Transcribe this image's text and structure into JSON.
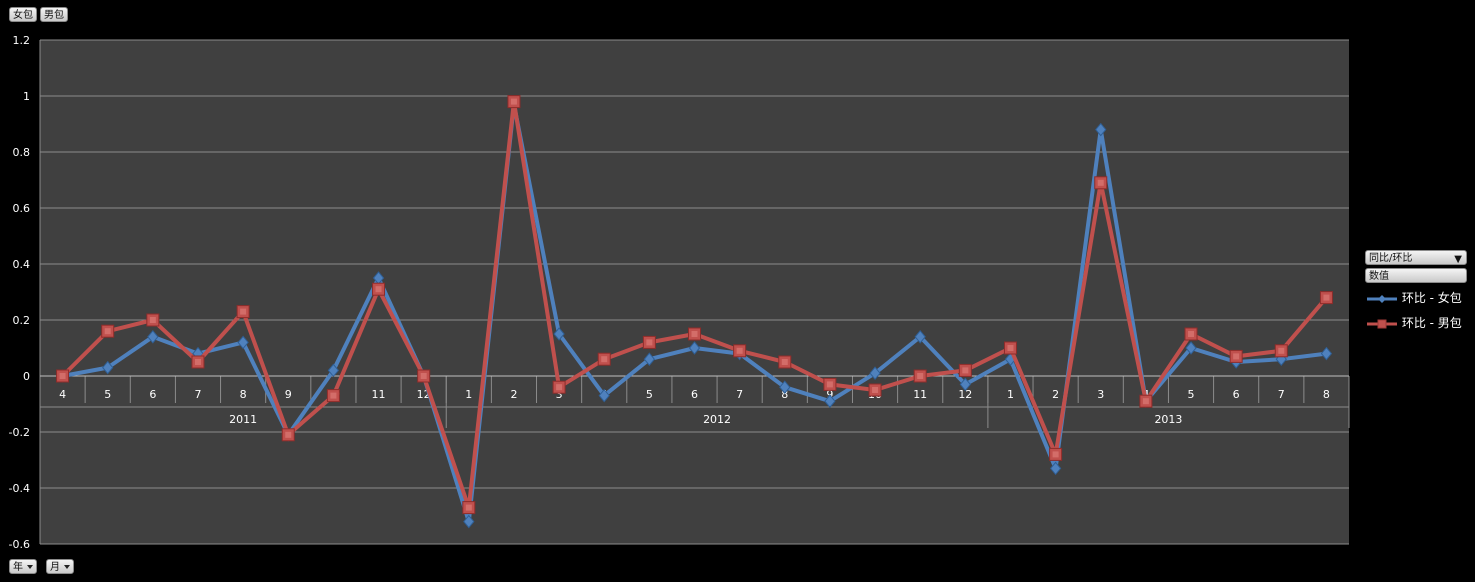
{
  "filter_buttons": {
    "series_a": "女包",
    "series_b": "男包",
    "year": "年",
    "month": "月"
  },
  "legend": {
    "field_label": "同比/环比",
    "values_label": "数值",
    "position": "right"
  },
  "colors": {
    "background": "#000000",
    "plot_area": "#404040",
    "gridline": "#8c8c8c",
    "text": "#ffffff",
    "series_a": "#4f81bd",
    "series_b": "#c0504d"
  },
  "chart_data": {
    "type": "line",
    "title": "",
    "xlabel": "",
    "ylabel": "",
    "ylim": [
      -0.6,
      1.2
    ],
    "yticks": [
      "1.2",
      "1",
      "0.8",
      "0.6",
      "0.4",
      "0.2",
      "0",
      "-0.2",
      "-0.4",
      "-0.6"
    ],
    "grid": true,
    "categories": [
      "4",
      "5",
      "6",
      "7",
      "8",
      "9",
      "10",
      "11",
      "12",
      "1",
      "2",
      "3",
      "4",
      "5",
      "6",
      "7",
      "8",
      "9",
      "10",
      "11",
      "12",
      "1",
      "2",
      "3",
      "4",
      "5",
      "6",
      "7",
      "8"
    ],
    "year_groups": [
      {
        "label": "2011",
        "count": 9
      },
      {
        "label": "2012",
        "count": 12
      },
      {
        "label": "2013",
        "count": 8
      }
    ],
    "series": [
      {
        "name": "环比 - 女包",
        "values": [
          0,
          0.03,
          0.14,
          0.08,
          0.12,
          -0.21,
          0.02,
          0.35,
          0,
          -0.52,
          0.97,
          0.15,
          -0.07,
          0.06,
          0.1,
          0.08,
          -0.04,
          -0.09,
          0.01,
          0.14,
          -0.03,
          0.06,
          -0.33,
          0.88,
          -0.09,
          0.1,
          0.05,
          0.06,
          0.08
        ]
      },
      {
        "name": "环比 - 男包",
        "values": [
          0,
          0.16,
          0.2,
          0.05,
          0.23,
          -0.21,
          -0.07,
          0.31,
          0,
          -0.47,
          0.98,
          -0.04,
          0.06,
          0.12,
          0.15,
          0.09,
          0.05,
          -0.03,
          -0.05,
          0,
          0.02,
          0.1,
          -0.28,
          0.69,
          -0.09,
          0.15,
          0.07,
          0.09,
          0.28
        ]
      }
    ]
  }
}
